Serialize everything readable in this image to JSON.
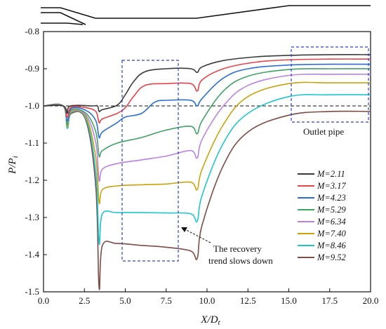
{
  "chart_data": {
    "type": "line",
    "xlabel": "X/D_t",
    "ylabel": "P/P_i",
    "xlim": [
      0,
      20
    ],
    "ylim": [
      -1.5,
      -0.8
    ],
    "x_ticks": [
      "0.0",
      "2.5",
      "5.0",
      "7.5",
      "10.0",
      "12.5",
      "15.0",
      "17.5",
      "20.0"
    ],
    "y_ticks": [
      "-0.8",
      "-0.9",
      "-1.0",
      "-1.1",
      "-1.2",
      "-1.3",
      "-1.4",
      "-1.5"
    ],
    "reference_line": {
      "y": -1.0,
      "style": "dashed"
    },
    "legend_position": "right",
    "annotations": {
      "outlet": "Outlet pipe",
      "recovery_line1": "The recovery",
      "recovery_line2": "trend slows down"
    },
    "series": [
      {
        "name": "M=2.11",
        "color": "#3a3a3a",
        "points": [
          [
            0,
            -1.0
          ],
          [
            1.2,
            -1.0
          ],
          [
            1.45,
            -1.02
          ],
          [
            1.65,
            -1.0
          ],
          [
            3.0,
            -1.0
          ],
          [
            3.3,
            -1.0
          ],
          [
            3.4,
            -1.015
          ],
          [
            3.6,
            -1.01
          ],
          [
            4.5,
            -0.998
          ],
          [
            5.0,
            -0.97
          ],
          [
            5.5,
            -0.935
          ],
          [
            6.2,
            -0.908
          ],
          [
            7.5,
            -0.9
          ],
          [
            9.0,
            -0.9
          ],
          [
            9.4,
            -0.91
          ],
          [
            9.7,
            -0.895
          ],
          [
            11.0,
            -0.878
          ],
          [
            13.0,
            -0.868
          ],
          [
            15.0,
            -0.864
          ],
          [
            17.5,
            -0.862
          ],
          [
            20.0,
            -0.862
          ]
        ]
      },
      {
        "name": "M=3.17",
        "color": "#e8434a",
        "points": [
          [
            0,
            -1.0
          ],
          [
            1.2,
            -1.0
          ],
          [
            1.45,
            -1.03
          ],
          [
            1.7,
            -1.003
          ],
          [
            2.6,
            -1.005
          ],
          [
            3.2,
            -1.015
          ],
          [
            3.4,
            -1.045
          ],
          [
            3.6,
            -1.035
          ],
          [
            4.5,
            -1.02
          ],
          [
            5.0,
            -1.005
          ],
          [
            5.5,
            -0.975
          ],
          [
            6.2,
            -0.945
          ],
          [
            7.5,
            -0.94
          ],
          [
            9.0,
            -0.94
          ],
          [
            9.4,
            -0.96
          ],
          [
            9.7,
            -0.93
          ],
          [
            11.0,
            -0.9
          ],
          [
            13.0,
            -0.882
          ],
          [
            15.0,
            -0.876
          ],
          [
            17.5,
            -0.874
          ],
          [
            20.0,
            -0.874
          ]
        ]
      },
      {
        "name": "M=4.23",
        "color": "#2a6fd6",
        "points": [
          [
            0,
            -1.0
          ],
          [
            1.2,
            -1.0
          ],
          [
            1.45,
            -1.04
          ],
          [
            1.7,
            -1.006
          ],
          [
            2.6,
            -1.012
          ],
          [
            3.2,
            -1.04
          ],
          [
            3.4,
            -1.085
          ],
          [
            3.6,
            -1.07
          ],
          [
            4.5,
            -1.045
          ],
          [
            5.0,
            -1.03
          ],
          [
            6.0,
            -1.02
          ],
          [
            6.8,
            -0.99
          ],
          [
            7.5,
            -0.985
          ],
          [
            9.0,
            -0.985
          ],
          [
            9.4,
            -1.0
          ],
          [
            9.7,
            -0.98
          ],
          [
            11.0,
            -0.925
          ],
          [
            12.5,
            -0.9
          ],
          [
            15.0,
            -0.89
          ],
          [
            17.5,
            -0.888
          ],
          [
            20.0,
            -0.888
          ]
        ]
      },
      {
        "name": "M=5.29",
        "color": "#3fa364",
        "points": [
          [
            0,
            -1.0
          ],
          [
            1.2,
            -1.0
          ],
          [
            1.45,
            -1.05
          ],
          [
            1.7,
            -1.01
          ],
          [
            2.6,
            -1.02
          ],
          [
            3.2,
            -1.07
          ],
          [
            3.4,
            -1.135
          ],
          [
            3.6,
            -1.12
          ],
          [
            4.5,
            -1.1
          ],
          [
            6.0,
            -1.085
          ],
          [
            7.5,
            -1.065
          ],
          [
            9.0,
            -1.055
          ],
          [
            9.4,
            -1.075
          ],
          [
            9.7,
            -1.04
          ],
          [
            11.0,
            -0.96
          ],
          [
            12.5,
            -0.92
          ],
          [
            15.0,
            -0.902
          ],
          [
            17.5,
            -0.9
          ],
          [
            20.0,
            -0.9
          ]
        ]
      },
      {
        "name": "M=6.34",
        "color": "#b981e6",
        "points": [
          [
            0,
            -1.0
          ],
          [
            1.2,
            -1.0
          ],
          [
            1.45,
            -1.05
          ],
          [
            1.7,
            -1.012
          ],
          [
            2.6,
            -1.025
          ],
          [
            3.2,
            -1.1
          ],
          [
            3.4,
            -1.2
          ],
          [
            3.6,
            -1.17
          ],
          [
            4.5,
            -1.155
          ],
          [
            6.0,
            -1.145
          ],
          [
            7.5,
            -1.135
          ],
          [
            9.0,
            -1.12
          ],
          [
            9.4,
            -1.14
          ],
          [
            9.7,
            -1.09
          ],
          [
            11.0,
            -1.0
          ],
          [
            12.5,
            -0.945
          ],
          [
            15.0,
            -0.918
          ],
          [
            17.5,
            -0.915
          ],
          [
            20.0,
            -0.915
          ]
        ]
      },
      {
        "name": "M=7.40",
        "color": "#c9a20c",
        "points": [
          [
            0,
            -1.0
          ],
          [
            1.2,
            -1.0
          ],
          [
            1.45,
            -1.055
          ],
          [
            1.7,
            -1.015
          ],
          [
            2.6,
            -1.03
          ],
          [
            3.2,
            -1.14
          ],
          [
            3.4,
            -1.26
          ],
          [
            3.6,
            -1.225
          ],
          [
            4.5,
            -1.215
          ],
          [
            6.0,
            -1.212
          ],
          [
            7.5,
            -1.21
          ],
          [
            9.0,
            -1.205
          ],
          [
            9.4,
            -1.225
          ],
          [
            9.7,
            -1.17
          ],
          [
            11.0,
            -1.05
          ],
          [
            12.5,
            -0.975
          ],
          [
            15.0,
            -0.94
          ],
          [
            17.5,
            -0.938
          ],
          [
            20.0,
            -0.938
          ]
        ]
      },
      {
        "name": "M=8.46",
        "color": "#1ec6cf",
        "points": [
          [
            0,
            -1.0
          ],
          [
            1.2,
            -1.0
          ],
          [
            1.45,
            -1.06
          ],
          [
            1.7,
            -1.017
          ],
          [
            2.6,
            -1.035
          ],
          [
            3.2,
            -1.18
          ],
          [
            3.4,
            -1.37
          ],
          [
            3.6,
            -1.29
          ],
          [
            4.5,
            -1.287
          ],
          [
            6.0,
            -1.287
          ],
          [
            7.5,
            -1.288
          ],
          [
            9.0,
            -1.29
          ],
          [
            9.4,
            -1.31
          ],
          [
            9.7,
            -1.24
          ],
          [
            11.0,
            -1.1
          ],
          [
            12.5,
            -1.02
          ],
          [
            15.0,
            -0.975
          ],
          [
            17.5,
            -0.97
          ],
          [
            20.0,
            -0.97
          ]
        ]
      },
      {
        "name": "M=9.52",
        "color": "#7d4b45",
        "points": [
          [
            0,
            -1.0
          ],
          [
            1.2,
            -1.0
          ],
          [
            1.45,
            -1.06
          ],
          [
            1.7,
            -1.02
          ],
          [
            2.6,
            -1.04
          ],
          [
            3.2,
            -1.22
          ],
          [
            3.4,
            -1.49
          ],
          [
            3.6,
            -1.375
          ],
          [
            4.5,
            -1.37
          ],
          [
            6.0,
            -1.375
          ],
          [
            7.5,
            -1.38
          ],
          [
            9.0,
            -1.39
          ],
          [
            9.4,
            -1.41
          ],
          [
            9.7,
            -1.32
          ],
          [
            11.0,
            -1.16
          ],
          [
            12.5,
            -1.07
          ],
          [
            15.0,
            -1.025
          ],
          [
            17.5,
            -1.015
          ],
          [
            20.0,
            -1.015
          ]
        ]
      }
    ]
  }
}
